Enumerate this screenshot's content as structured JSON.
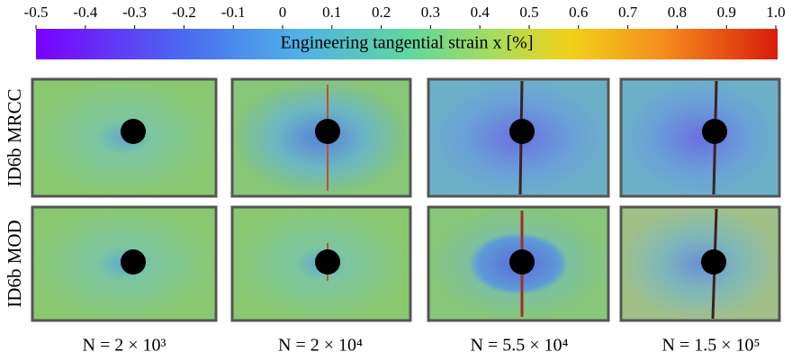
{
  "colorbar": {
    "label": "Engineering tangential strain x [%]",
    "lim": [
      -0.5,
      1
    ],
    "ticks": [
      -0.5,
      -0.4,
      -0.3,
      -0.2,
      -0.1,
      0,
      0.1,
      0.2,
      0.3,
      0.4,
      0.5,
      0.6,
      0.7,
      0.8,
      0.9,
      {
        "value": 1,
        "label": "1.0"
      }
    ]
  },
  "rows": [
    "ID6b MRCC",
    "ID6b MOD"
  ],
  "columns": [
    "N = 2 × 10³",
    "N = 2 × 10⁴",
    "N = 5.5 × 10⁴",
    "N = 1.5 × 10⁵"
  ]
}
